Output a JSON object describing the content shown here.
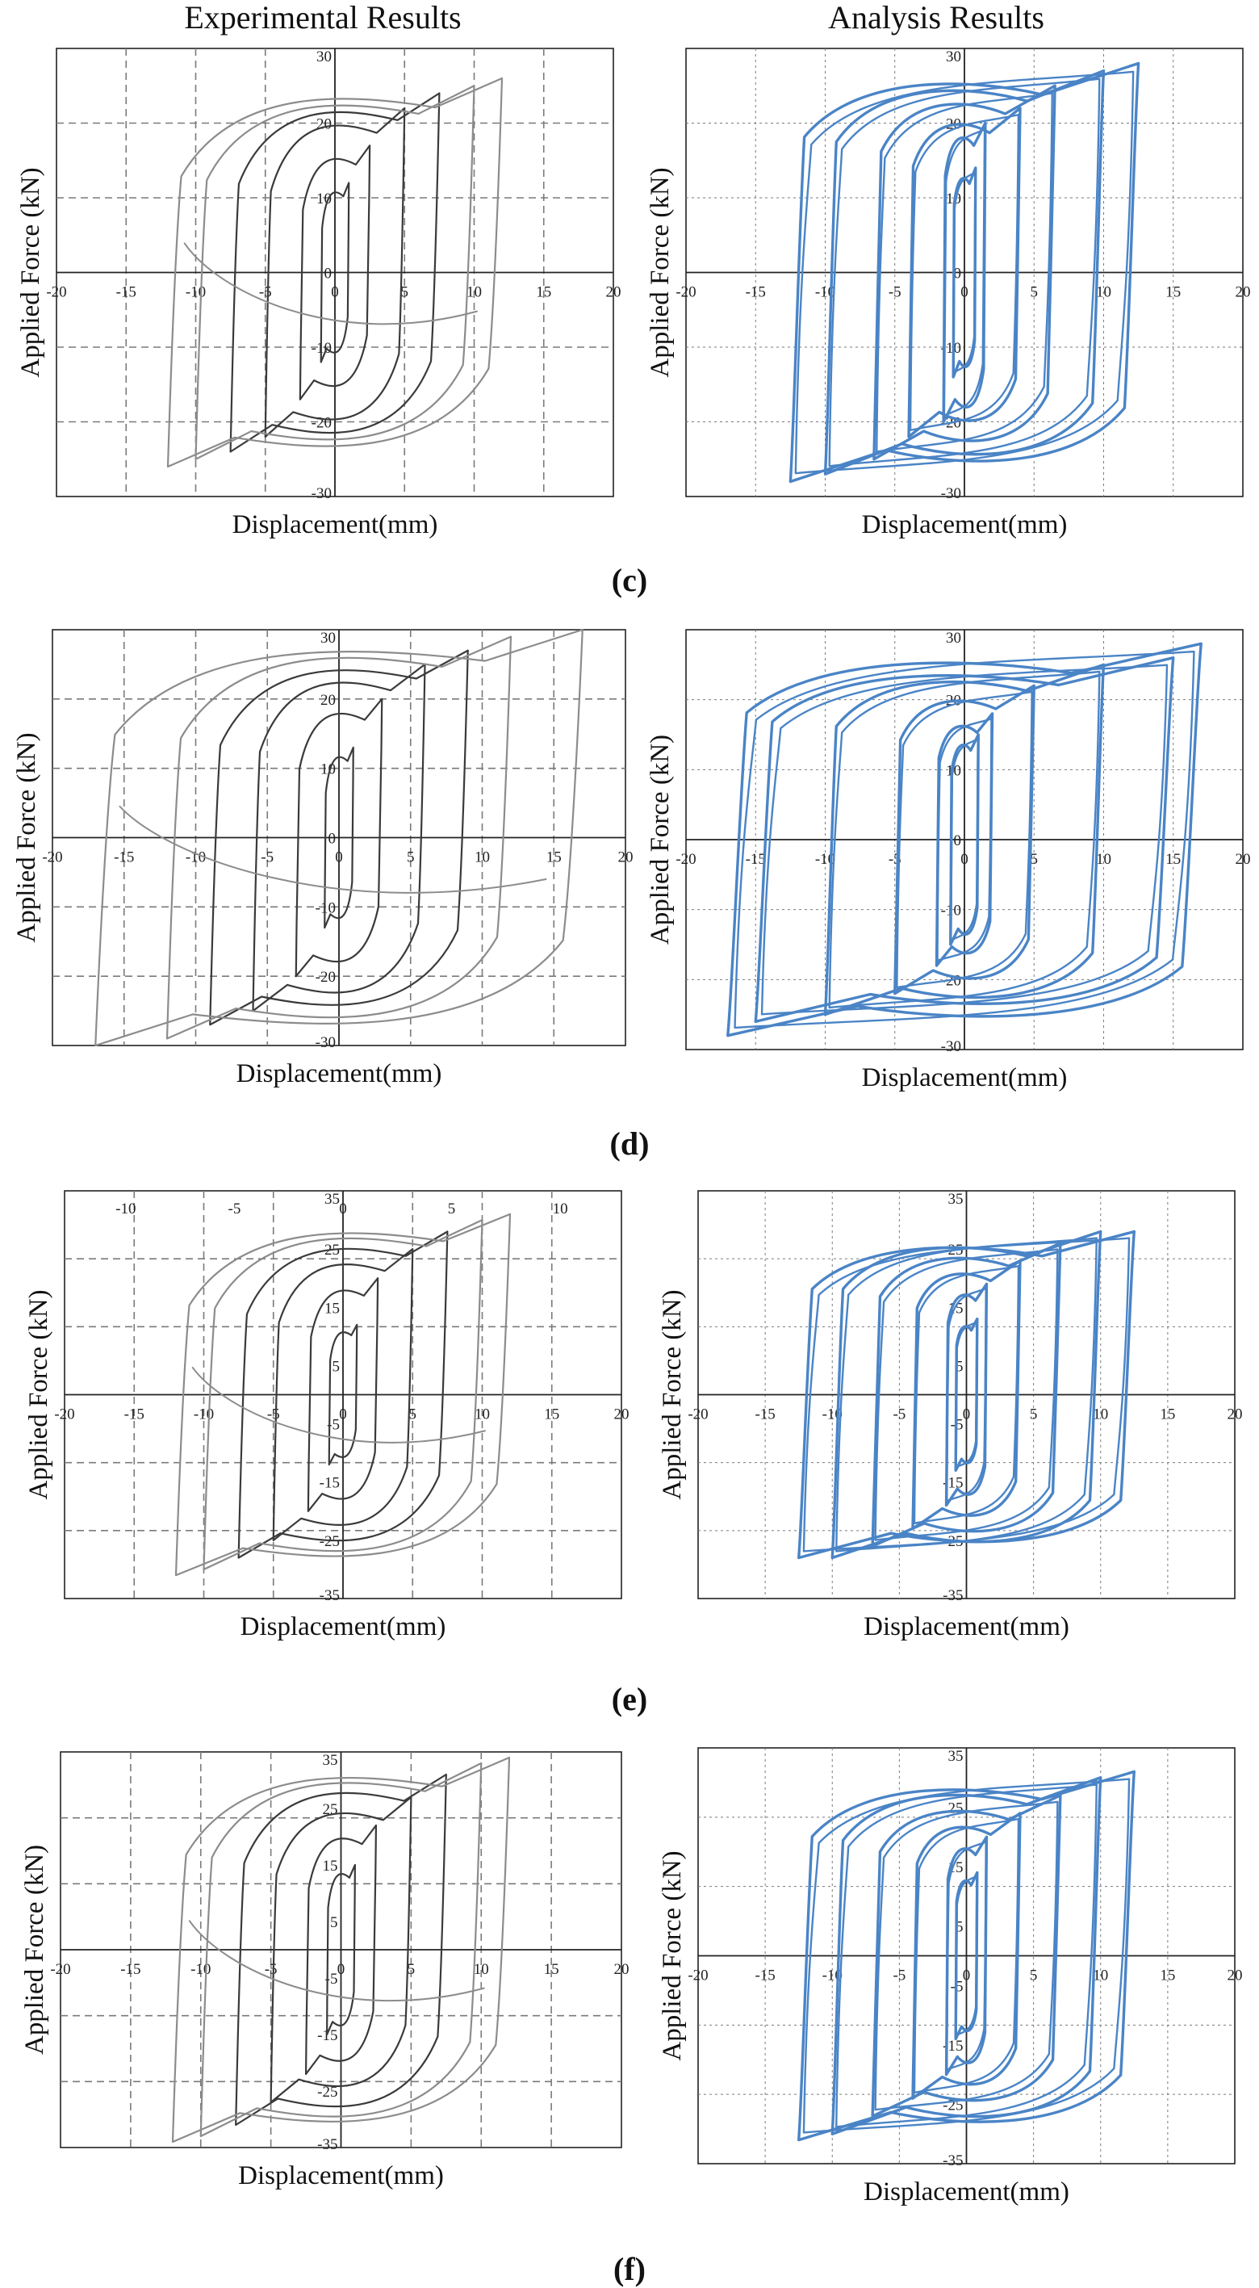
{
  "headers": {
    "experimental": "Experimental Results",
    "analysis": "Analysis Results"
  },
  "colors": {
    "experimental": "#3a3a3a",
    "experimental_light": "#8c8c8c",
    "analysis": "#4a84c6",
    "grid": "#7a7a7a",
    "axis": "#222222"
  },
  "panels": [
    {
      "label_open": "(",
      "label_letter": "c",
      "label_close": ")"
    },
    {
      "label_open": "(",
      "label_letter": "d",
      "label_close": ")"
    },
    {
      "label_open": "(",
      "label_letter": "e",
      "label_close": ")"
    },
    {
      "label_open": "(",
      "label_letter": "f",
      "label_close": ")"
    }
  ],
  "chart_data": [
    {
      "id": "c-exp",
      "type": "line",
      "style": "experimental",
      "xlabel": "Displacement(mm)",
      "ylabel": "Applied Force (kN)",
      "xlim": [
        -20,
        20
      ],
      "ylim": [
        -30,
        30
      ],
      "xticks": [
        -20,
        -15,
        -10,
        -5,
        0,
        5,
        10,
        15,
        20
      ],
      "yticks": [
        30,
        20,
        10,
        0,
        -10,
        -20,
        -30
      ],
      "xtick_labels": [
        "-20",
        "-15",
        "-10",
        "-5",
        "0",
        "5",
        "10",
        "15",
        "20"
      ],
      "ytick_labels": [
        "30",
        "20",
        "10",
        "0",
        "-10",
        "-20",
        "-30"
      ],
      "loops": [
        {
          "d": 1,
          "f": 12
        },
        {
          "d": 2.5,
          "f": 17
        },
        {
          "d": 5,
          "f": 22
        },
        {
          "d": 7.5,
          "f": 24
        },
        {
          "d": 10,
          "f": 25
        },
        {
          "d": 12,
          "f": 26
        }
      ],
      "pinch": 0.55
    },
    {
      "id": "c-ana",
      "type": "line",
      "style": "analysis",
      "xlabel": "Displacement(mm)",
      "ylabel": "Applied Force (kN)",
      "xlim": [
        -20,
        20
      ],
      "ylim": [
        -30,
        30
      ],
      "xticks": [
        -20,
        -15,
        -10,
        -5,
        0,
        5,
        10,
        15,
        20
      ],
      "yticks": [
        30,
        20,
        10,
        0,
        -10,
        -20,
        -30
      ],
      "xtick_labels": [
        "-20",
        "-15",
        "-10",
        "-5",
        "0",
        "5",
        "10",
        "15",
        "20"
      ],
      "ytick_labels": [
        "30",
        "20",
        "10",
        "0",
        "-10",
        "-20",
        "-30"
      ],
      "loops": [
        {
          "d": 0.8,
          "f": 14
        },
        {
          "d": 1.5,
          "f": 20
        },
        {
          "d": 4,
          "f": 22
        },
        {
          "d": 6.5,
          "f": 25
        },
        {
          "d": 10,
          "f": 27
        },
        {
          "d": 12.5,
          "f": 28
        }
      ],
      "pinch": 0.25
    },
    {
      "id": "d-exp",
      "type": "line",
      "style": "experimental",
      "xlabel": "Displacement(mm)",
      "ylabel": "Applied Force (kN)",
      "xlim": [
        -20,
        20
      ],
      "ylim": [
        -30,
        30
      ],
      "xticks": [
        -20,
        -15,
        -10,
        -5,
        0,
        5,
        10,
        15,
        20
      ],
      "yticks": [
        30,
        20,
        10,
        0,
        -10,
        -20,
        -30
      ],
      "xtick_labels": [
        "-20",
        "-15",
        "-10",
        "-5",
        "0",
        "5",
        "10",
        "15",
        "20"
      ],
      "ytick_labels": [
        "30",
        "20",
        "10",
        "0",
        "-10",
        "-20",
        "-30"
      ],
      "loops": [
        {
          "d": 1,
          "f": 13
        },
        {
          "d": 3,
          "f": 20
        },
        {
          "d": 6,
          "f": 25
        },
        {
          "d": 9,
          "f": 27
        },
        {
          "d": 12,
          "f": 29
        },
        {
          "d": 17,
          "f": 30
        }
      ],
      "pinch": 0.55
    },
    {
      "id": "d-ana",
      "type": "line",
      "style": "analysis",
      "xlabel": "Displacement(mm)",
      "ylabel": "Applied Force (kN)",
      "xlim": [
        -20,
        20
      ],
      "ylim": [
        -30,
        30
      ],
      "xticks": [
        -20,
        -15,
        -10,
        -5,
        0,
        5,
        10,
        15,
        20
      ],
      "yticks": [
        30,
        20,
        10,
        0,
        -10,
        -20,
        -30
      ],
      "xtick_labels": [
        "-20",
        "-15",
        "-10",
        "-5",
        "0",
        "5",
        "10",
        "15",
        "20"
      ],
      "ytick_labels": [
        "30",
        "20",
        "10",
        "0",
        "-10",
        "-20",
        "-30"
      ],
      "loops": [
        {
          "d": 1,
          "f": 15
        },
        {
          "d": 2,
          "f": 18
        },
        {
          "d": 5,
          "f": 22
        },
        {
          "d": 10,
          "f": 25
        },
        {
          "d": 15,
          "f": 26
        },
        {
          "d": 17,
          "f": 28
        }
      ],
      "pinch": 0.25
    },
    {
      "id": "e-exp",
      "type": "line",
      "style": "experimental",
      "xlabel": "Displacement(mm)",
      "ylabel": "Applied Force (kN)",
      "xlim": [
        -20,
        20
      ],
      "ylim": [
        -35,
        35
      ],
      "xticks": [
        -20,
        -15,
        -10,
        -5,
        0,
        5,
        10,
        15,
        20
      ],
      "yticks": [
        35,
        25,
        15,
        5,
        -5,
        -15,
        -25,
        -35
      ],
      "xtick_labels": [
        "-20",
        "-15",
        "-10",
        "-5",
        "0",
        "5",
        "10",
        "15",
        "20"
      ],
      "ytick_labels": [
        "35",
        "25",
        "15",
        "5",
        "-5",
        "-15",
        "-25",
        "-35"
      ],
      "top_xtick_labels": [
        "-10",
        "-5",
        "0",
        "5",
        "10"
      ],
      "top_xticks": [
        -20,
        -10,
        0,
        10,
        20
      ],
      "loops": [
        {
          "d": 1,
          "f": 12
        },
        {
          "d": 2.5,
          "f": 20
        },
        {
          "d": 5,
          "f": 25
        },
        {
          "d": 7.5,
          "f": 28
        },
        {
          "d": 10,
          "f": 30
        },
        {
          "d": 12,
          "f": 31
        }
      ],
      "pinch": 0.55
    },
    {
      "id": "e-ana",
      "type": "line",
      "style": "analysis",
      "xlabel": "Displacement(mm)",
      "ylabel": "Applied Force (kN)",
      "xlim": [
        -20,
        20
      ],
      "ylim": [
        -35,
        35
      ],
      "xticks": [
        -20,
        -15,
        -10,
        -5,
        0,
        5,
        10,
        15,
        20
      ],
      "yticks": [
        35,
        25,
        15,
        5,
        -5,
        -15,
        -25,
        -35
      ],
      "xtick_labels": [
        "-20",
        "-15",
        "-10",
        "-5",
        "0",
        "5",
        "10",
        "15",
        "20"
      ],
      "ytick_labels": [
        "35",
        "25",
        "15",
        "5",
        "-5",
        "-15",
        "-25",
        "-35"
      ],
      "loops": [
        {
          "d": 0.8,
          "f": 13
        },
        {
          "d": 1.5,
          "f": 19
        },
        {
          "d": 4,
          "f": 23
        },
        {
          "d": 7,
          "f": 26
        },
        {
          "d": 10,
          "f": 28
        },
        {
          "d": 12.5,
          "f": 28
        }
      ],
      "pinch": 0.25
    },
    {
      "id": "f-exp",
      "type": "line",
      "style": "experimental",
      "xlabel": "Displacement(mm)",
      "ylabel": "Applied Force (kN)",
      "xlim": [
        -20,
        20
      ],
      "ylim": [
        -35,
        35
      ],
      "xticks": [
        -20,
        -15,
        -10,
        -5,
        0,
        5,
        10,
        15,
        20
      ],
      "yticks": [
        35,
        25,
        15,
        5,
        -5,
        -15,
        -25,
        -35
      ],
      "xtick_labels": [
        "-20",
        "-15",
        "-10",
        "-5",
        "0",
        "5",
        "10",
        "15",
        "20"
      ],
      "ytick_labels": [
        "35",
        "25",
        "15",
        "5",
        "-5",
        "-15",
        "-25",
        "-35"
      ],
      "loops": [
        {
          "d": 1,
          "f": 15
        },
        {
          "d": 2.5,
          "f": 22
        },
        {
          "d": 5,
          "f": 27
        },
        {
          "d": 7.5,
          "f": 31
        },
        {
          "d": 10,
          "f": 33
        },
        {
          "d": 12,
          "f": 34
        }
      ],
      "pinch": 0.55
    },
    {
      "id": "f-ana",
      "type": "line",
      "style": "analysis",
      "xlabel": "Displacement(mm)",
      "ylabel": "Applied Force (kN)",
      "xlim": [
        -20,
        20
      ],
      "ylim": [
        -35,
        35
      ],
      "xticks": [
        -20,
        -15,
        -10,
        -5,
        0,
        5,
        10,
        15,
        20
      ],
      "yticks": [
        35,
        25,
        15,
        5,
        -5,
        -15,
        -25,
        -35
      ],
      "xtick_labels": [
        "-20",
        "-15",
        "-10",
        "-5",
        "0",
        "5",
        "10",
        "15",
        "20"
      ],
      "ytick_labels": [
        "35",
        "25",
        "15",
        "5",
        "-5",
        "-15",
        "-25",
        "-35"
      ],
      "loops": [
        {
          "d": 0.8,
          "f": 14
        },
        {
          "d": 1.5,
          "f": 20
        },
        {
          "d": 4,
          "f": 24
        },
        {
          "d": 7,
          "f": 27
        },
        {
          "d": 10,
          "f": 30
        },
        {
          "d": 12.5,
          "f": 31
        }
      ],
      "pinch": 0.25
    }
  ]
}
